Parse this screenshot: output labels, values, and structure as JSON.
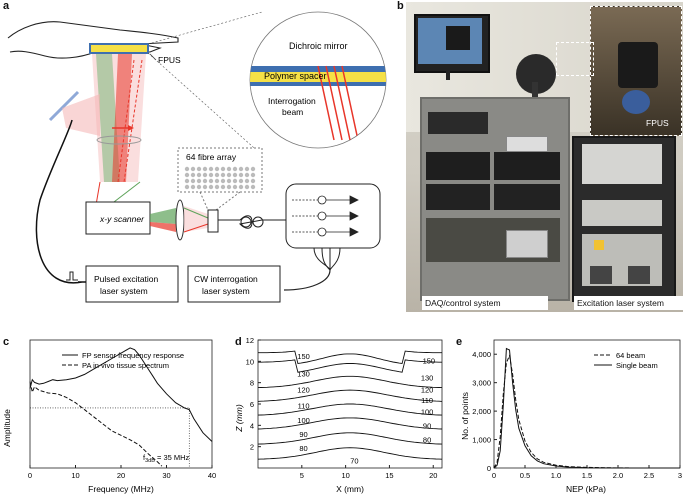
{
  "panels": {
    "a": "a",
    "b": "b",
    "c": "c",
    "d": "d",
    "e": "e"
  },
  "schematic": {
    "fpus": "FPUS",
    "dichroic": "Dichroic mirror",
    "spacer": "Polymer spacer",
    "beam": "Interrogation beam",
    "fibre": "64 fibre array",
    "scanner": "x-y scanner",
    "pulsed_l1": "Pulsed excitation",
    "pulsed_l2": "laser system",
    "cw_l1": "CW interrogation",
    "cw_l2": "laser system"
  },
  "photo": {
    "fpus": "FPUS",
    "daq": "DAQ/control system",
    "excitation": "Excitation laser system"
  },
  "colors": {
    "red": "#e8362a",
    "green": "#5ea35a",
    "pink": "#f4b3b3",
    "yellow": "#f5e046",
    "blue": "#3e6fb0"
  },
  "chart_data": [
    {
      "type": "line",
      "xlabel": "Frequency (MHz)",
      "ylabel": "Amplitude",
      "xlim": [
        0,
        40
      ],
      "xticks": [
        "0",
        "10",
        "20",
        "30",
        "40"
      ],
      "legend": [
        "FP sensor frequency response",
        "PA in vivo tissue spectrum"
      ],
      "annotation": "f",
      "annotation_sub": "3dB",
      "annotation_rest": " = 35 MHz",
      "series": [
        {
          "name": "FP sensor frequency response",
          "x": [
            0,
            0.5,
            1,
            2,
            3,
            4,
            5,
            6,
            8,
            10,
            12,
            14,
            16,
            18,
            20,
            21,
            22,
            23,
            24,
            25,
            26,
            27,
            28,
            30,
            32,
            34,
            35,
            36,
            38,
            40
          ],
          "y": [
            0.9,
            1.0,
            0.97,
            0.95,
            0.96,
            0.98,
            1.0,
            0.99,
            1.0,
            1.02,
            1.06,
            1.12,
            1.18,
            1.24,
            1.3,
            1.33,
            1.36,
            1.34,
            1.28,
            1.2,
            1.12,
            1.04,
            0.96,
            0.84,
            0.74,
            0.68,
            0.66,
            0.56,
            0.4,
            0.3
          ]
        },
        {
          "name": "PA in vivo tissue spectrum",
          "x": [
            0,
            0.5,
            1,
            2,
            4,
            6,
            8,
            10,
            12,
            14,
            16,
            18,
            20,
            22,
            24,
            26,
            28,
            29
          ],
          "y": [
            0.98,
            0.86,
            0.92,
            0.88,
            0.85,
            0.84,
            0.8,
            0.74,
            0.66,
            0.58,
            0.5,
            0.42,
            0.37,
            0.32,
            0.26,
            0.16,
            0.07,
            0.02
          ]
        }
      ],
      "threshold": 0.68,
      "f3db": 35
    },
    {
      "type": "contour",
      "xlabel": "X (mm)",
      "ylabel": "Z (mm)",
      "xlim": [
        0,
        21
      ],
      "ylim": [
        0,
        12
      ],
      "xticks": [
        "5",
        "10",
        "15",
        "20"
      ],
      "yticks": [
        "2",
        "4",
        "6",
        "8",
        "10",
        "12"
      ],
      "contour_labels": [
        "150",
        "130",
        "120",
        "110",
        "100",
        "90",
        "80",
        "70",
        "150",
        "130",
        "120",
        "110",
        "100",
        "90",
        "80"
      ]
    },
    {
      "type": "line",
      "xlabel": "NEP (kPa)",
      "ylabel": "No. of points",
      "xlim": [
        0,
        3
      ],
      "ylim": [
        0,
        4500
      ],
      "xticks": [
        "0",
        "0.5",
        "1.0",
        "1.5",
        "2.0",
        "2.5",
        "3"
      ],
      "yticks": [
        "0",
        "1,000",
        "2,000",
        "3,000",
        "4,000"
      ],
      "legend": [
        "64 beam",
        "Single beam"
      ],
      "series": [
        {
          "name": "64 beam",
          "x": [
            0,
            0.05,
            0.1,
            0.15,
            0.2,
            0.25,
            0.3,
            0.35,
            0.4,
            0.5,
            0.6,
            0.7,
            0.8,
            1.0,
            1.2,
            1.5,
            2.0,
            2.5,
            3.0
          ],
          "y": [
            0,
            200,
            1100,
            2600,
            3700,
            3950,
            3300,
            2400,
            1700,
            950,
            550,
            320,
            200,
            100,
            50,
            20,
            5,
            0,
            0
          ]
        },
        {
          "name": "Single beam",
          "x": [
            0,
            0.05,
            0.1,
            0.15,
            0.2,
            0.25,
            0.3,
            0.35,
            0.4,
            0.5,
            0.6,
            0.7,
            0.8,
            1.0,
            1.2,
            1.5,
            2.0,
            2.5,
            3.0
          ],
          "y": [
            0,
            100,
            600,
            2200,
            4200,
            4150,
            3000,
            2050,
            1400,
            780,
            430,
            250,
            150,
            70,
            30,
            10,
            0,
            0,
            0
          ]
        }
      ]
    }
  ]
}
